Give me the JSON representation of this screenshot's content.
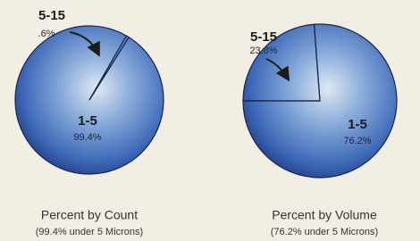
{
  "chart_data": [
    {
      "type": "pie",
      "title": "Percent by Count",
      "subtitle": "(99.4% under 5 Microns)",
      "categories": [
        "5-15",
        "1-5"
      ],
      "values": [
        0.6,
        99.4
      ],
      "value_labels": [
        ".6%",
        "99.4%"
      ]
    },
    {
      "type": "pie",
      "title": "Percent by Volume",
      "subtitle": "(76.2% under 5 Microns)",
      "categories": [
        "5-15",
        "1-5"
      ],
      "values": [
        23.8,
        76.2
      ],
      "value_labels": [
        "23.8%",
        "76.2%"
      ]
    }
  ]
}
